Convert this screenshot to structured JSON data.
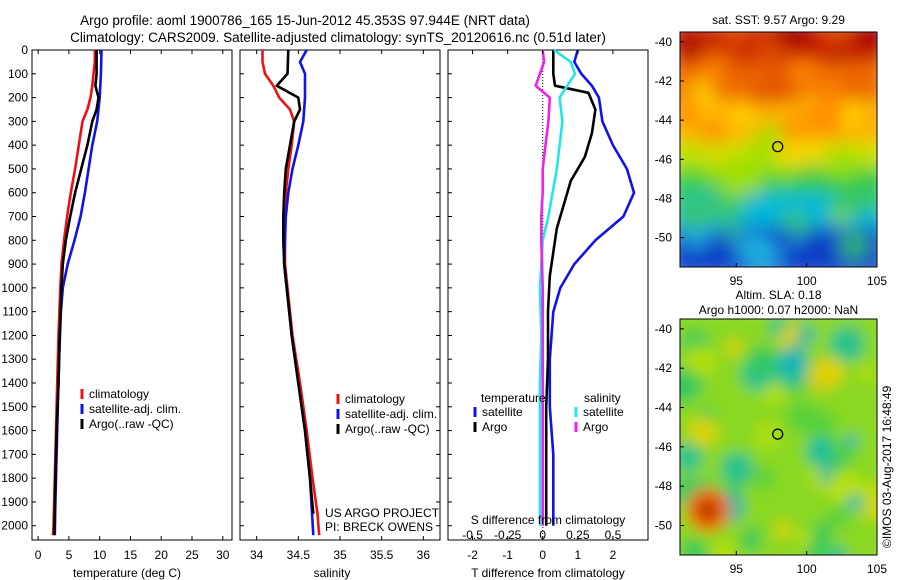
{
  "header": {
    "line1": "Argo profile: aoml 1900786_165 15-Jun-2012 45.353S 97.944E (NRT data)",
    "line2": "Climatology: CARS2009. Satellite-adjusted climatology: synTS_20120616.nc (0.51d later)"
  },
  "colors": {
    "red": "#ee1111",
    "blue": "#1111ee",
    "black": "#000000",
    "cyan": "#22e6e6",
    "magenta": "#ee22ee"
  },
  "credits": {
    "line1": "US ARGO PROJECT",
    "line2": "PI: BRECK OWENS"
  },
  "watermark": "©IMOS 03-Aug-2017 16:48:49",
  "chart_data": [
    {
      "type": "line",
      "xlabel": "temperature (deg C)",
      "ylabel": "",
      "xlim": [
        -1,
        31.5
      ],
      "ylim": [
        0,
        2060
      ],
      "y_reversed": true,
      "xticks": [
        "0",
        "5",
        "10",
        "15",
        "20",
        "25",
        "30"
      ],
      "yticks": [
        "0",
        "100",
        "200",
        "300",
        "400",
        "500",
        "600",
        "700",
        "800",
        "900",
        "1000",
        "1100",
        "1200",
        "1300",
        "1400",
        "1500",
        "1600",
        "1700",
        "1800",
        "1900",
        "2000"
      ],
      "legend": [
        "climatology",
        "satellite-adj. clim.",
        "Argo(..raw -QC)"
      ],
      "series": [
        {
          "name": "climatology",
          "color": "red",
          "points": [
            [
              9.2,
              0
            ],
            [
              9.2,
              50
            ],
            [
              9.0,
              100
            ],
            [
              8.8,
              150
            ],
            [
              8.5,
              200
            ],
            [
              8.0,
              250
            ],
            [
              7.2,
              300
            ],
            [
              6.6,
              400
            ],
            [
              6.0,
              500
            ],
            [
              5.3,
              600
            ],
            [
              4.7,
              700
            ],
            [
              4.2,
              800
            ],
            [
              3.8,
              900
            ],
            [
              3.6,
              1000
            ],
            [
              3.3,
              1200
            ],
            [
              3.1,
              1400
            ],
            [
              2.9,
              1600
            ],
            [
              2.7,
              1800
            ],
            [
              2.5,
              2000
            ],
            [
              2.4,
              2040
            ]
          ]
        },
        {
          "name": "satellite-adj. clim.",
          "color": "blue",
          "points": [
            [
              10.3,
              0
            ],
            [
              10.2,
              100
            ],
            [
              10.0,
              200
            ],
            [
              9.6,
              300
            ],
            [
              8.8,
              400
            ],
            [
              8.2,
              500
            ],
            [
              7.6,
              600
            ],
            [
              6.9,
              700
            ],
            [
              5.9,
              800
            ],
            [
              4.8,
              900
            ],
            [
              4.0,
              1000
            ],
            [
              3.7,
              1100
            ],
            [
              3.4,
              1300
            ],
            [
              3.2,
              1500
            ],
            [
              3.0,
              1700
            ],
            [
              2.8,
              1900
            ],
            [
              2.7,
              2040
            ]
          ]
        },
        {
          "name": "Argo(..raw -QC)",
          "color": "black",
          "points": [
            [
              9.5,
              0
            ],
            [
              9.5,
              100
            ],
            [
              9.3,
              150
            ],
            [
              9.8,
              200
            ],
            [
              9.5,
              250
            ],
            [
              8.8,
              300
            ],
            [
              8.0,
              400
            ],
            [
              7.0,
              500
            ],
            [
              6.0,
              600
            ],
            [
              5.2,
              700
            ],
            [
              4.5,
              800
            ],
            [
              4.0,
              900
            ],
            [
              3.8,
              1000
            ],
            [
              3.5,
              1200
            ],
            [
              3.3,
              1400
            ],
            [
              3.0,
              1600
            ],
            [
              2.8,
              1800
            ],
            [
              2.6,
              2040
            ]
          ]
        }
      ]
    },
    {
      "type": "line",
      "xlabel": "salinity",
      "xlim": [
        33.8,
        36.2
      ],
      "ylim": [
        0,
        2060
      ],
      "y_reversed": true,
      "xticks": [
        "34",
        "34.5",
        "35",
        "35.5",
        "36"
      ],
      "legend": [
        "climatology",
        "satellite-adj. clim.",
        "Argo(..raw -QC)"
      ],
      "series": [
        {
          "name": "climatology",
          "color": "red",
          "points": [
            [
              34.07,
              0
            ],
            [
              34.07,
              50
            ],
            [
              34.1,
              100
            ],
            [
              34.2,
              150
            ],
            [
              34.27,
              200
            ],
            [
              34.4,
              250
            ],
            [
              34.45,
              300
            ],
            [
              34.42,
              400
            ],
            [
              34.38,
              500
            ],
            [
              34.35,
              600
            ],
            [
              34.34,
              700
            ],
            [
              34.34,
              800
            ],
            [
              34.34,
              900
            ],
            [
              34.37,
              1000
            ],
            [
              34.43,
              1200
            ],
            [
              34.52,
              1400
            ],
            [
              34.6,
              1600
            ],
            [
              34.67,
              1800
            ],
            [
              34.73,
              1950
            ],
            [
              34.75,
              2040
            ]
          ]
        },
        {
          "name": "satellite-adj. clim.",
          "color": "blue",
          "points": [
            [
              34.6,
              0
            ],
            [
              34.52,
              50
            ],
            [
              34.58,
              100
            ],
            [
              34.58,
              200
            ],
            [
              34.56,
              300
            ],
            [
              34.5,
              400
            ],
            [
              34.43,
              500
            ],
            [
              34.38,
              600
            ],
            [
              34.35,
              700
            ],
            [
              34.34,
              800
            ],
            [
              34.33,
              900
            ],
            [
              34.36,
              1000
            ],
            [
              34.42,
              1200
            ],
            [
              34.5,
              1400
            ],
            [
              34.58,
              1600
            ],
            [
              34.64,
              1800
            ],
            [
              34.68,
              2040
            ]
          ]
        },
        {
          "name": "Argo(..raw -QC)",
          "color": "black",
          "points": [
            [
              34.38,
              0
            ],
            [
              34.37,
              100
            ],
            [
              34.24,
              150
            ],
            [
              34.5,
              200
            ],
            [
              34.52,
              250
            ],
            [
              34.45,
              300
            ],
            [
              34.4,
              400
            ],
            [
              34.35,
              500
            ],
            [
              34.33,
              600
            ],
            [
              34.32,
              700
            ],
            [
              34.32,
              800
            ],
            [
              34.33,
              900
            ],
            [
              34.36,
              1000
            ],
            [
              34.42,
              1200
            ],
            [
              34.5,
              1400
            ],
            [
              34.58,
              1600
            ],
            [
              34.64,
              1800
            ],
            [
              34.68,
              1950
            ]
          ]
        }
      ]
    },
    {
      "type": "line",
      "xlabel": "T difference from climatology",
      "title": "S difference from climatology",
      "xlim": [
        -2.7,
        3.0
      ],
      "x2lim": [
        -0.675,
        0.75
      ],
      "ylim": [
        0,
        2060
      ],
      "y_reversed": true,
      "xticks": [
        "-2",
        "-1",
        "0",
        "1",
        "2"
      ],
      "x2ticks": [
        "-0.5",
        "-0.25",
        "0",
        "0.25",
        "0.5"
      ],
      "legend": {
        "temperature": "temperature",
        "salinity": "salinity",
        "satellite": "satellite",
        "argo": "Argo"
      },
      "series": [
        {
          "name": "temperature satellite",
          "color": "blue",
          "points": [
            [
              1.0,
              0
            ],
            [
              0.9,
              50
            ],
            [
              1.1,
              100
            ],
            [
              1.4,
              150
            ],
            [
              1.6,
              200
            ],
            [
              1.7,
              300
            ],
            [
              2.0,
              400
            ],
            [
              2.4,
              500
            ],
            [
              2.6,
              600
            ],
            [
              2.3,
              700
            ],
            [
              1.5,
              800
            ],
            [
              0.9,
              900
            ],
            [
              0.5,
              1000
            ],
            [
              0.3,
              1100
            ],
            [
              0.2,
              1300
            ],
            [
              0.2,
              1500
            ],
            [
              0.3,
              1700
            ],
            [
              0.3,
              2000
            ]
          ]
        },
        {
          "name": "temperature Argo",
          "color": "black",
          "points": [
            [
              0.3,
              0
            ],
            [
              0.3,
              50
            ],
            [
              0.3,
              100
            ],
            [
              0.35,
              150
            ],
            [
              1.3,
              180
            ],
            [
              1.5,
              250
            ],
            [
              1.4,
              350
            ],
            [
              1.2,
              450
            ],
            [
              0.8,
              550
            ],
            [
              0.6,
              650
            ],
            [
              0.4,
              750
            ],
            [
              0.3,
              850
            ],
            [
              0.2,
              950
            ],
            [
              0.15,
              1100
            ],
            [
              0.15,
              1300
            ],
            [
              0.1,
              1500
            ],
            [
              0.1,
              1700
            ],
            [
              0.1,
              2000
            ]
          ]
        },
        {
          "name": "salinity satellite",
          "color": "cyan",
          "points": [
            [
              0.08,
              0
            ],
            [
              0.2,
              50
            ],
            [
              0.23,
              100
            ],
            [
              0.12,
              200
            ],
            [
              0.14,
              300
            ],
            [
              0.12,
              400
            ],
            [
              0.1,
              500
            ],
            [
              0.07,
              600
            ],
            [
              0.04,
              700
            ],
            [
              0.0,
              800
            ],
            [
              -0.02,
              1000
            ],
            [
              -0.01,
              1200
            ],
            [
              -0.02,
              1400
            ],
            [
              -0.02,
              1600
            ],
            [
              -0.02,
              1800
            ],
            [
              -0.02,
              2000
            ]
          ]
        },
        {
          "name": "salinity Argo",
          "color": "magenta",
          "points": [
            [
              0.0,
              0
            ],
            [
              0.01,
              50
            ],
            [
              -0.02,
              100
            ],
            [
              -0.05,
              150
            ],
            [
              0.05,
              200
            ],
            [
              0.04,
              300
            ],
            [
              0.02,
              400
            ],
            [
              0.0,
              500
            ],
            [
              0.0,
              600
            ],
            [
              -0.01,
              700
            ],
            [
              -0.01,
              800
            ],
            [
              0.0,
              1000
            ],
            [
              0.0,
              1200
            ],
            [
              0.0,
              1400
            ],
            [
              0.0,
              1600
            ],
            [
              0.0,
              1800
            ],
            [
              0.0,
              2000
            ]
          ]
        }
      ]
    },
    {
      "type": "heatmap",
      "title": "sat. SST: 9.57  Argo: 9.29",
      "xlim": [
        91,
        105
      ],
      "ylim": [
        -51.5,
        -39.5
      ],
      "xticks": [
        "95",
        "100",
        "105"
      ],
      "yticks": [
        "-40",
        "-42",
        "-44",
        "-46",
        "-48",
        "-50"
      ],
      "marker": [
        97.944,
        -45.353
      ]
    },
    {
      "type": "heatmap",
      "title": "Altim. SLA: 0.18",
      "subtitle": "Argo h1000: 0.07  h2000: NaN",
      "xlim": [
        91,
        105
      ],
      "ylim": [
        -51.5,
        -39.5
      ],
      "xticks": [
        "95",
        "100",
        "105"
      ],
      "yticks": [
        "-40",
        "-42",
        "-44",
        "-46",
        "-48",
        "-50"
      ],
      "marker": [
        97.944,
        -45.353
      ]
    }
  ]
}
